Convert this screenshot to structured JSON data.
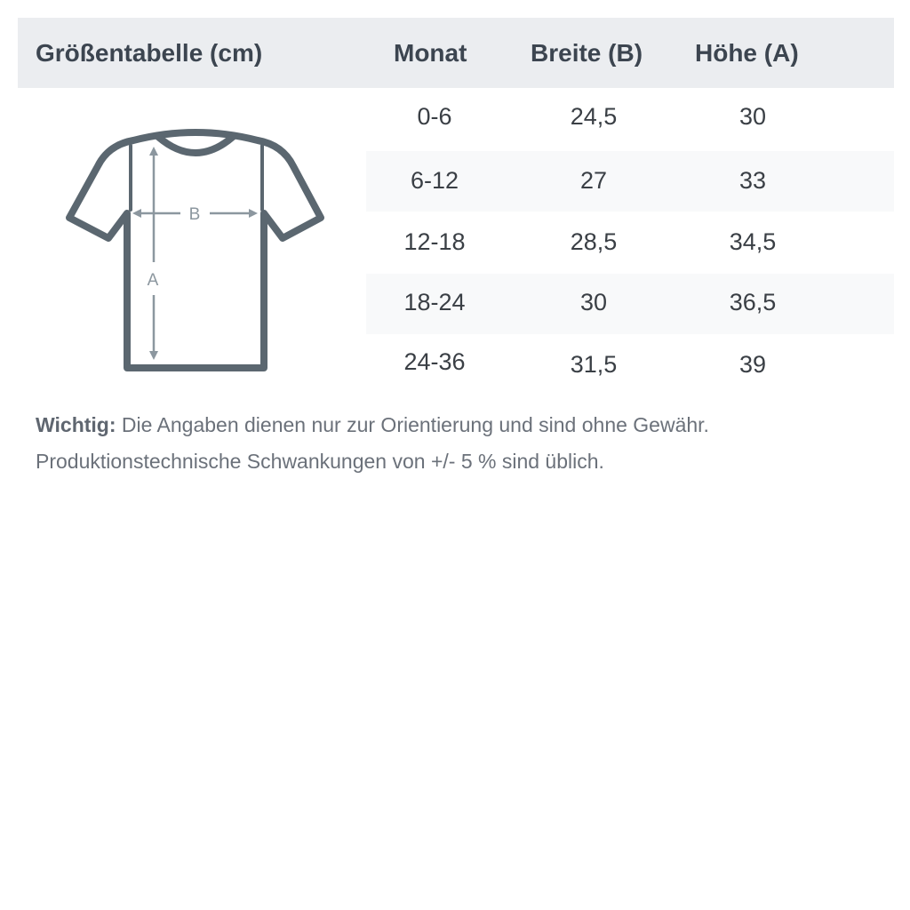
{
  "header": {
    "title": "Größentabelle (cm)",
    "columns": [
      "Monat",
      "Breite (B)",
      "Höhe (A)"
    ]
  },
  "rows": [
    [
      "0-6",
      "24,5",
      "30"
    ],
    [
      "6-12",
      "27",
      "33"
    ],
    [
      "12-18",
      "28,5",
      "34,5"
    ],
    [
      "18-24",
      "30",
      "36,5"
    ],
    [
      "24-36",
      "31,5",
      "39"
    ]
  ],
  "diagram": {
    "label_b": "B",
    "label_a": "A",
    "icon": "t-shirt-measurement-icon"
  },
  "note": {
    "label": "Wichtig:",
    "text": " Die Angaben dienen nur zur Orientierung und sind ohne Gewähr. Produktionstechnische Schwankungen von +/- 5 % sind üblich."
  },
  "colors": {
    "header_bg": "#ebedf0",
    "stripe_bg": "#f8f9fa",
    "shirt": "#5b6770",
    "arrows": "#8c979f"
  }
}
